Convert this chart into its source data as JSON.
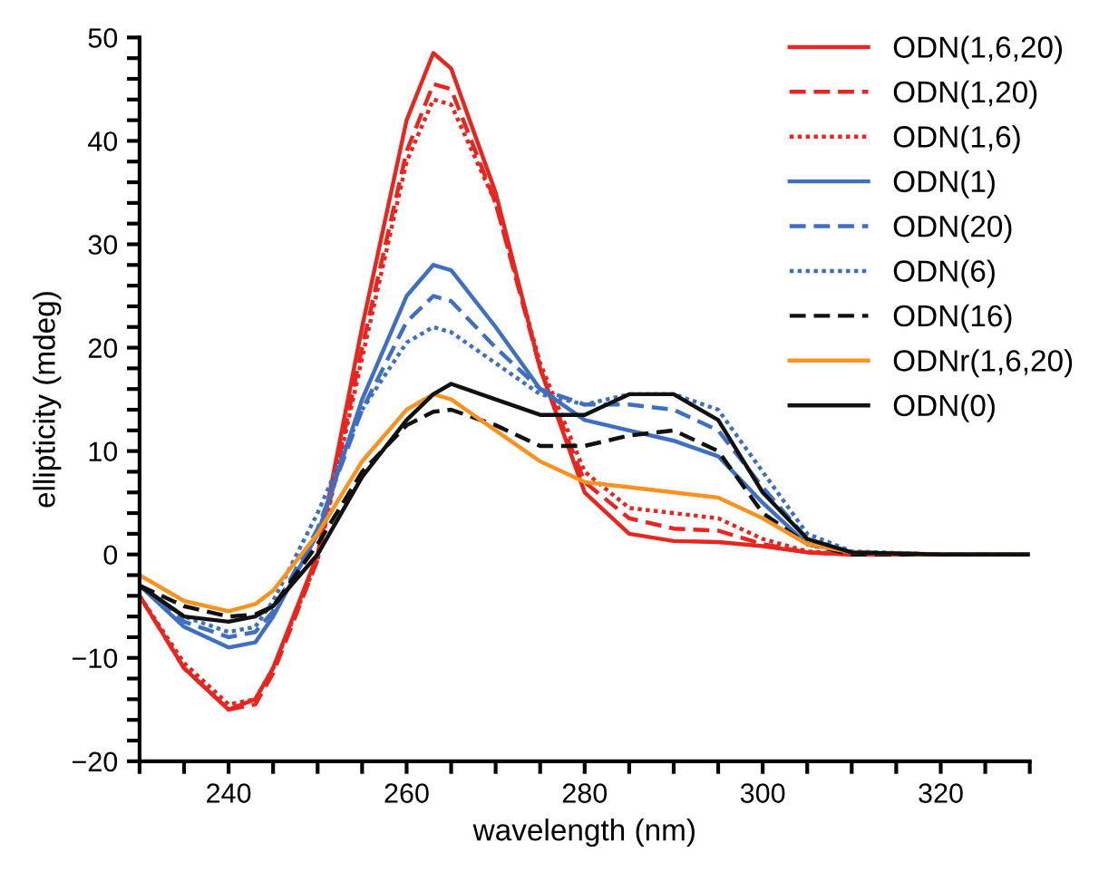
{
  "chart_data": {
    "type": "line",
    "xlabel": "wavelength (nm)",
    "ylabel": "ellipticity (mdeg)",
    "xlim": [
      230,
      330
    ],
    "ylim": [
      -20,
      50
    ],
    "xticks": [
      {
        "value": 230,
        "label": null
      },
      {
        "value": 235,
        "label": null
      },
      240,
      {
        "value": 245,
        "label": null
      },
      {
        "value": 250,
        "label": null
      },
      {
        "value": 255,
        "label": null
      },
      260,
      {
        "value": 265,
        "label": null
      },
      {
        "value": 270,
        "label": null
      },
      {
        "value": 275,
        "label": null
      },
      280,
      {
        "value": 285,
        "label": null
      },
      {
        "value": 290,
        "label": null
      },
      {
        "value": 295,
        "label": null
      },
      300,
      {
        "value": 305,
        "label": null
      },
      {
        "value": 310,
        "label": null
      },
      {
        "value": 315,
        "label": null
      },
      320,
      {
        "value": 325,
        "label": null
      },
      {
        "value": 330,
        "label": null
      }
    ],
    "yticks": [
      {
        "value": -20,
        "label": "−20"
      },
      {
        "value": -18,
        "label": null
      },
      {
        "value": -16,
        "label": null
      },
      {
        "value": -14,
        "label": null
      },
      {
        "value": -12,
        "label": null
      },
      {
        "value": -10,
        "label": "−10"
      },
      {
        "value": -8,
        "label": null
      },
      {
        "value": -6,
        "label": null
      },
      {
        "value": -4,
        "label": null
      },
      {
        "value": -2,
        "label": null
      },
      0,
      {
        "value": 2,
        "label": null
      },
      {
        "value": 4,
        "label": null
      },
      {
        "value": 6,
        "label": null
      },
      {
        "value": 8,
        "label": null
      },
      10,
      {
        "value": 12,
        "label": null
      },
      {
        "value": 14,
        "label": null
      },
      {
        "value": 16,
        "label": null
      },
      {
        "value": 18,
        "label": null
      },
      20,
      {
        "value": 22,
        "label": null
      },
      {
        "value": 24,
        "label": null
      },
      {
        "value": 26,
        "label": null
      },
      {
        "value": 28,
        "label": null
      },
      30,
      {
        "value": 32,
        "label": null
      },
      {
        "value": 34,
        "label": null
      },
      {
        "value": 36,
        "label": null
      },
      {
        "value": 38,
        "label": null
      },
      40,
      {
        "value": 42,
        "label": null
      },
      {
        "value": 44,
        "label": null
      },
      {
        "value": 46,
        "label": null
      },
      {
        "value": 48,
        "label": null
      },
      50
    ],
    "grid": false,
    "legend": "top right",
    "marker": "none",
    "x": [
      230,
      235,
      240,
      243,
      245,
      250,
      255,
      260,
      263,
      265,
      270,
      275,
      280,
      285,
      290,
      295,
      300,
      305,
      310,
      320,
      330
    ],
    "series": [
      {
        "name": "ODN(1,6,20)",
        "color": "#e8251f",
        "line_style": "solid",
        "values": [
          -4,
          -11,
          -15,
          -14,
          -11,
          0,
          22,
          42,
          48.5,
          47,
          35,
          18,
          6,
          2,
          1.3,
          1.2,
          0.8,
          0.2,
          0,
          0,
          0
        ]
      },
      {
        "name": "ODN(1,20)",
        "color": "#e8251f",
        "line_style": "dashed",
        "values": [
          -4,
          -11,
          -15,
          -14.5,
          -11.5,
          -0.5,
          20,
          39,
          45.5,
          45,
          34,
          18,
          7,
          3.5,
          2.5,
          2.3,
          1,
          0.2,
          0,
          0,
          0
        ]
      },
      {
        "name": "ODN(1,6)",
        "color": "#e8251f",
        "line_style": "dotted",
        "values": [
          -4,
          -10.5,
          -14.5,
          -14,
          -11,
          -0.5,
          19,
          38,
          44,
          43.5,
          34,
          18.5,
          8,
          4.5,
          4,
          3.5,
          1.5,
          0.3,
          0,
          0,
          0
        ]
      },
      {
        "name": "ODN(1)",
        "color": "#3f6fc0",
        "line_style": "solid",
        "values": [
          -3,
          -7,
          -9,
          -8.5,
          -6,
          2,
          15,
          25,
          28,
          27.5,
          22,
          16,
          13,
          12,
          11,
          9.5,
          5,
          1,
          0.2,
          0,
          0
        ]
      },
      {
        "name": "ODN(20)",
        "color": "#3f6fc0",
        "line_style": "dashed",
        "values": [
          -3,
          -6.5,
          -8,
          -7.5,
          -5.5,
          2.5,
          14,
          22.5,
          25,
          24.5,
          20,
          16,
          14.5,
          14.5,
          14,
          12,
          6.5,
          1.5,
          0.2,
          0,
          0
        ]
      },
      {
        "name": "ODN(6)",
        "color": "#3f6fc0",
        "line_style": "dotted",
        "values": [
          -3,
          -6,
          -7.5,
          -7,
          -4.5,
          4,
          14,
          20.5,
          22,
          21.5,
          18.5,
          15.5,
          14.5,
          15.5,
          15.5,
          14,
          8,
          2,
          0.3,
          0,
          0
        ]
      },
      {
        "name": "ODN(16)",
        "color": "#111111",
        "line_style": "dashed",
        "values": [
          -3,
          -5,
          -6,
          -5.8,
          -5,
          1,
          8,
          12.5,
          13.8,
          14,
          12.5,
          10.5,
          10.5,
          11.5,
          12,
          10,
          4,
          1,
          0,
          0,
          0
        ]
      },
      {
        "name": "ODNr(1,6,20)",
        "color": "#f7931e",
        "line_style": "solid",
        "values": [
          -2,
          -4.5,
          -5.5,
          -4.8,
          -3.5,
          2,
          9,
          14,
          15.5,
          15,
          12,
          9,
          7,
          6.5,
          6,
          5.5,
          3.5,
          1,
          0.2,
          0,
          0
        ]
      },
      {
        "name": "ODN(0)",
        "color": "#111111",
        "line_style": "solid",
        "values": [
          -3,
          -6,
          -6.5,
          -6,
          -5,
          0,
          7.5,
          13,
          15.5,
          16.5,
          15,
          13.5,
          13.5,
          15.5,
          15.5,
          13,
          6,
          1.5,
          0.2,
          0,
          0
        ]
      }
    ]
  }
}
